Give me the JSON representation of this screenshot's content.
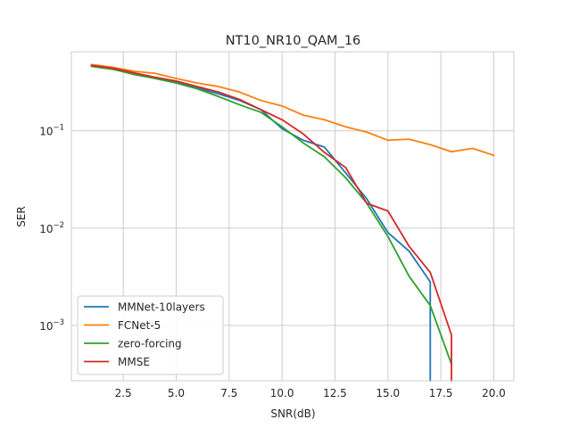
{
  "chart_data": {
    "type": "line",
    "title": "NT10_NR10_QAM_16",
    "xlabel": "SNR(dB)",
    "ylabel": "SER",
    "xlim": [
      0.05,
      20.95
    ],
    "ylim": [
      0.00027,
      0.65
    ],
    "yscale": "log",
    "grid": true,
    "legend_position": "lower-left",
    "x_ticks": [
      2.5,
      5.0,
      7.5,
      10.0,
      12.5,
      15.0,
      17.5,
      20.0
    ],
    "x_tick_labels": [
      "2.5",
      "5.0",
      "7.5",
      "10.0",
      "12.5",
      "15.0",
      "17.5",
      "20.0"
    ],
    "y_ticks": [
      0.001,
      0.01,
      0.1
    ],
    "y_tick_labels": [
      {
        "base": "10",
        "exp": "−3"
      },
      {
        "base": "10",
        "exp": "−2"
      },
      {
        "base": "10",
        "exp": "−1"
      }
    ],
    "series": [
      {
        "name": "MMNet-10layers",
        "color": "#1f77b4",
        "x": [
          1,
          2,
          3,
          4,
          5,
          6,
          7,
          8,
          9,
          10,
          11,
          12,
          13,
          14,
          15,
          16,
          17,
          17
        ],
        "y": [
          0.46,
          0.43,
          0.385,
          0.35,
          0.315,
          0.275,
          0.24,
          0.205,
          0.165,
          0.105,
          0.08,
          0.068,
          0.037,
          0.02,
          0.009,
          0.0058,
          0.0028,
          0.00027
        ]
      },
      {
        "name": "FCNet-5",
        "color": "#ff7f0e",
        "x": [
          1,
          2,
          3,
          4,
          5,
          6,
          7,
          8,
          9,
          10,
          11,
          12,
          13,
          14,
          15,
          16,
          17,
          18,
          19,
          20
        ],
        "y": [
          0.48,
          0.45,
          0.41,
          0.39,
          0.345,
          0.31,
          0.285,
          0.25,
          0.205,
          0.18,
          0.145,
          0.13,
          0.11,
          0.097,
          0.08,
          0.082,
          0.072,
          0.061,
          0.066,
          0.056
        ]
      },
      {
        "name": "zero-forcing",
        "color": "#2ca02c",
        "x": [
          1,
          2,
          3,
          4,
          5,
          6,
          7,
          8,
          9,
          10,
          11,
          12,
          13,
          14,
          15,
          16,
          17,
          18
        ],
        "y": [
          0.46,
          0.43,
          0.38,
          0.345,
          0.31,
          0.27,
          0.225,
          0.185,
          0.155,
          0.11,
          0.075,
          0.054,
          0.033,
          0.018,
          0.0082,
          0.0032,
          0.0016,
          0.0004
        ]
      },
      {
        "name": "MMSE",
        "color": "#d62728",
        "x": [
          1,
          2,
          3,
          4,
          5,
          6,
          7,
          8,
          9,
          10,
          11,
          12,
          13,
          14,
          15,
          16,
          17,
          18,
          18
        ],
        "y": [
          0.47,
          0.44,
          0.395,
          0.355,
          0.325,
          0.285,
          0.25,
          0.21,
          0.165,
          0.13,
          0.093,
          0.06,
          0.042,
          0.018,
          0.015,
          0.0065,
          0.0035,
          0.0008,
          0.00027
        ]
      }
    ]
  }
}
